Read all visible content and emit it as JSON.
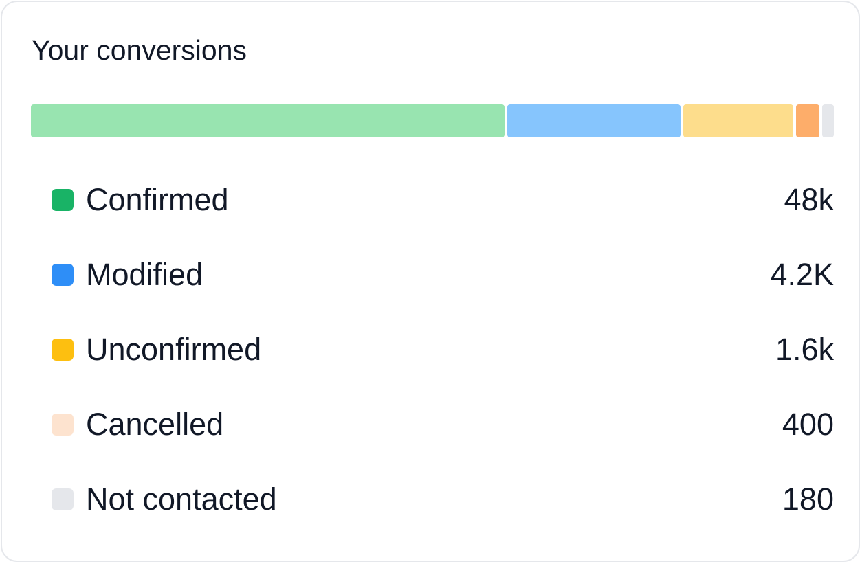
{
  "card": {
    "title": "Your conversions"
  },
  "conversion_bar": {
    "segments": [
      {
        "status": "Confirmed",
        "share": 0.594,
        "color": "#98e4b0"
      },
      {
        "status": "Modified",
        "share": 0.217,
        "color": "#86c5fd"
      },
      {
        "status": "Unconfirmed",
        "share": 0.138,
        "color": "#fddd8c"
      },
      {
        "status": "Cancelled",
        "share": 0.029,
        "color": "#fdad6a"
      },
      {
        "status": "Not contacted",
        "share": 0.015,
        "color": "#e5e7eb"
      }
    ]
  },
  "legend": {
    "items": [
      {
        "label": "Confirmed",
        "value": "48k",
        "color": "#19b366"
      },
      {
        "label": "Modified",
        "value": "4.2K",
        "color": "#2e8ef7"
      },
      {
        "label": "Unconfirmed",
        "value": "1.6k",
        "color": "#fdbf10"
      },
      {
        "label": "Cancelled",
        "value": "400",
        "color": "#fde3cf"
      },
      {
        "label": "Not contacted",
        "value": "180",
        "color": "#e5e7eb"
      }
    ]
  }
}
